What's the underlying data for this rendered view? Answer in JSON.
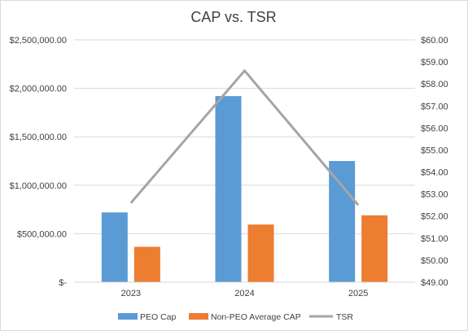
{
  "chart_data": {
    "type": "bar",
    "title": "CAP vs. TSR",
    "categories": [
      "2023",
      "2024",
      "2025"
    ],
    "series": [
      {
        "name": "PEO Cap",
        "type": "bar",
        "axis": "left",
        "color": "#5b9bd5",
        "values": [
          720000,
          1920000,
          1250000
        ]
      },
      {
        "name": "Non-PEO Average CAP",
        "type": "bar",
        "axis": "left",
        "color": "#ed7d31",
        "values": [
          365000,
          595000,
          690000
        ]
      },
      {
        "name": "TSR",
        "type": "line",
        "axis": "right",
        "color": "#a5a5a5",
        "values": [
          52.6,
          58.6,
          52.5
        ]
      }
    ],
    "y_left": {
      "ylim": [
        0,
        2500000
      ],
      "ticks": [
        0,
        500000,
        1000000,
        1500000,
        2000000,
        2500000
      ],
      "tick_labels": [
        "$-",
        "$500,000.00",
        "$1,000,000.00",
        "$1,500,000.00",
        "$2,000,000.00",
        "$2,500,000.00"
      ]
    },
    "y_right": {
      "ylim": [
        49,
        60
      ],
      "ticks": [
        49,
        50,
        51,
        52,
        53,
        54,
        55,
        56,
        57,
        58,
        59,
        60
      ],
      "tick_labels": [
        "$49.00",
        "$50.00",
        "$51.00",
        "$52.00",
        "$53.00",
        "$54.00",
        "$55.00",
        "$56.00",
        "$57.00",
        "$58.00",
        "$59.00",
        "$60.00"
      ]
    },
    "grid": true,
    "legend": "bottom"
  }
}
